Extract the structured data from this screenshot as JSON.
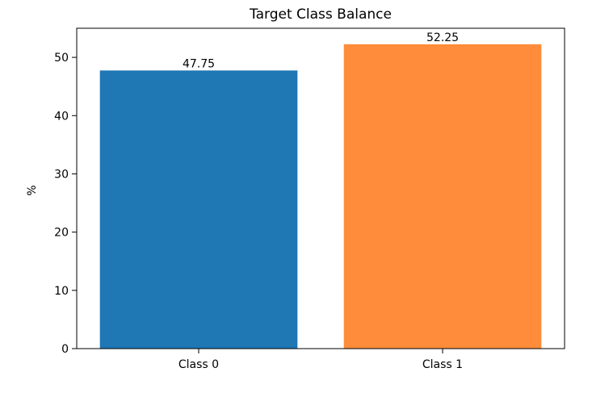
{
  "chart_data": {
    "type": "bar",
    "title": "Target Class Balance",
    "xlabel": "",
    "ylabel": "%",
    "categories": [
      "Class 0",
      "Class 1"
    ],
    "values": [
      47.75,
      52.25
    ],
    "data_labels": [
      "47.75",
      "52.25"
    ],
    "bar_colors": [
      "#1f77b4",
      "#ff8c3a"
    ],
    "ylim": [
      0,
      55
    ],
    "yticks": [
      0,
      10,
      20,
      30,
      40,
      50
    ],
    "grid": false,
    "legend": "none"
  }
}
